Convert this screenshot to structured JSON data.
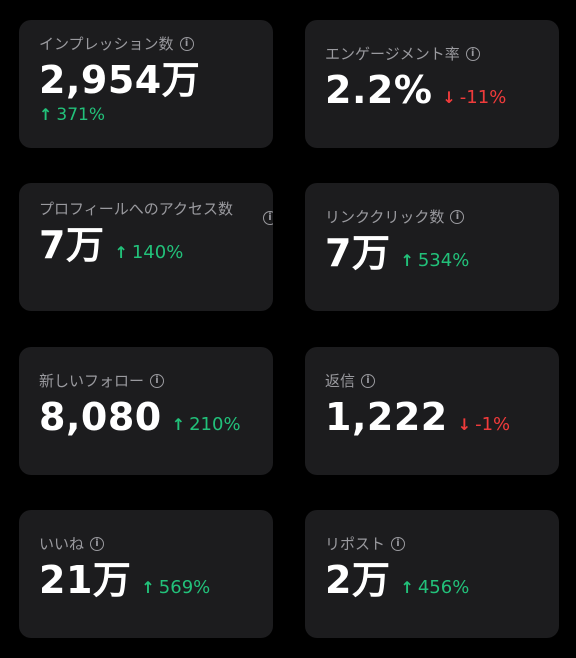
{
  "cards": [
    {
      "label": "インプレッション数",
      "value": "2,954万",
      "delta_arrow": "↑",
      "delta": "371%",
      "direction": "up"
    },
    {
      "label": "エンゲージメント率",
      "value": "2.2%",
      "delta_arrow": "↓",
      "delta": "-11%",
      "direction": "down"
    },
    {
      "label": "プロフィールへのアクセス数",
      "value": "7万",
      "delta_arrow": "↑",
      "delta": "140%",
      "direction": "up"
    },
    {
      "label": "リンククリック数",
      "value": "7万",
      "delta_arrow": "↑",
      "delta": "534%",
      "direction": "up"
    },
    {
      "label": "新しいフォロー",
      "value": "8,080",
      "delta_arrow": "↑",
      "delta": "210%",
      "direction": "up"
    },
    {
      "label": "返信",
      "value": "1,222",
      "delta_arrow": "↓",
      "delta": "-1%",
      "direction": "down"
    },
    {
      "label": "いいね",
      "value": "21万",
      "delta_arrow": "↑",
      "delta": "569%",
      "direction": "up"
    },
    {
      "label": "リポスト",
      "value": "2万",
      "delta_arrow": "↑",
      "delta": "456%",
      "direction": "up"
    }
  ],
  "info_icon": {
    "icon": "info-icon",
    "glyph": "i"
  },
  "colors": {
    "background": "#000000",
    "card": "#1c1c1e",
    "label": "#9a9a9f",
    "positive": "#22c17a",
    "negative": "#f03b3b"
  }
}
